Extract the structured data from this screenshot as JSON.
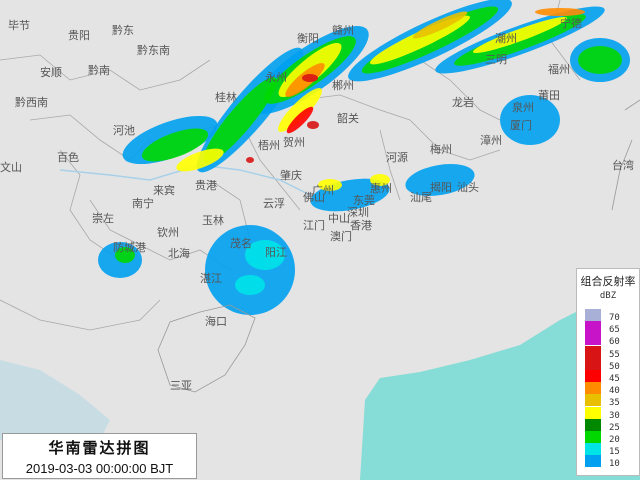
{
  "title": "华南雷达拼图",
  "timestamp": "2019-03-03 00:00:00 BJT",
  "legend": {
    "title": "组合反射率",
    "unit": "dBZ",
    "levels": [
      {
        "value": "70",
        "color": "#a8b0d8"
      },
      {
        "value": "65",
        "color": "#c814c8"
      },
      {
        "value": "60",
        "color": "#c814c8"
      },
      {
        "value": "55",
        "color": "#d81414"
      },
      {
        "value": "50",
        "color": "#d81414"
      },
      {
        "value": "45",
        "color": "#ff0000"
      },
      {
        "value": "40",
        "color": "#ff8c00"
      },
      {
        "value": "35",
        "color": "#e8c000"
      },
      {
        "value": "30",
        "color": "#ffff00"
      },
      {
        "value": "25",
        "color": "#008800"
      },
      {
        "value": "20",
        "color": "#00d800"
      },
      {
        "value": "15",
        "color": "#00e4e8"
      },
      {
        "value": "10",
        "color": "#00a0f0"
      }
    ]
  },
  "cities": [
    "毕节",
    "贵阳",
    "黔东",
    "黔东南",
    "安顺",
    "黔南",
    "黔西南",
    "河池",
    "桂林",
    "永州",
    "衡阳",
    "梧州",
    "贺州",
    "百色",
    "文山",
    "来宾",
    "贵港",
    "南宁",
    "崇左",
    "钦州",
    "玉林",
    "防城港",
    "北海",
    "茂名",
    "湛江",
    "肇庆",
    "云浮",
    "广州",
    "佛山",
    "东莞",
    "惠州",
    "深圳",
    "中山",
    "香港",
    "澳门",
    "江门",
    "河源",
    "梅州",
    "揭阳",
    "汕头",
    "汕尾",
    "赣州",
    "郴州",
    "三明",
    "龙岩",
    "福州",
    "宁德",
    "莆田",
    "泉州",
    "厦门",
    "漳州",
    "台湾",
    "韶关",
    "海口",
    "三亚",
    "阳江",
    "潮州"
  ],
  "colors": {
    "land": "#e4e4e4",
    "sea": "#7fd8d8",
    "border": "#a8a8a8",
    "river": "#a8d0e8"
  }
}
